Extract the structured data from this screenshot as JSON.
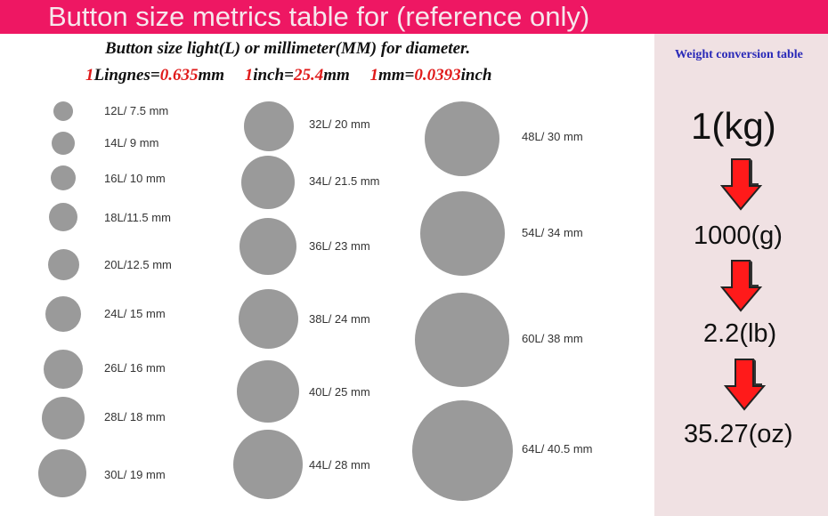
{
  "header": {
    "title": "Button size metrics table for (reference only)"
  },
  "intro": {
    "line1": "Button size light(L) or millimeter(MM) for diameter.",
    "line2": [
      {
        "red": "1",
        "black": "Lingnes="
      },
      {
        "red": "0.635",
        "black": "mm"
      },
      {
        "red": "1",
        "black": "inch="
      },
      {
        "red": "25.4",
        "black": "mm"
      },
      {
        "red": "1",
        "black": "mm="
      },
      {
        "red": "0.0393",
        "black": "inch"
      }
    ]
  },
  "sizes": {
    "column1": [
      "12L/ 7.5 mm",
      "14L/ 9 mm",
      "16L/ 10 mm",
      "18L/11.5 mm",
      "20L/12.5 mm",
      "24L/ 15 mm",
      "26L/ 16 mm",
      "28L/ 18 mm",
      "30L/ 19 mm"
    ],
    "column2": [
      "32L/ 20 mm",
      "34L/ 21.5 mm",
      "36L/ 23 mm",
      "38L/ 24 mm",
      "40L/ 25 mm",
      "44L/ 28 mm"
    ],
    "column3": [
      "48L/ 30 mm",
      "54L/ 34 mm",
      "60L/ 38 mm",
      "64L/ 40.5 mm"
    ]
  },
  "weight": {
    "title": "Weight conversion table",
    "values": [
      "1(kg)",
      "1000(g)",
      "2.2(lb)",
      "35.27(oz)"
    ],
    "arrow_icon": "down-arrow-icon"
  },
  "colors": {
    "banner": "#ee1763",
    "circle": "#9a9a9a",
    "accent_red": "#e01b1b",
    "panel": "#f0e1e3",
    "title_blue": "#2a2ab8"
  }
}
